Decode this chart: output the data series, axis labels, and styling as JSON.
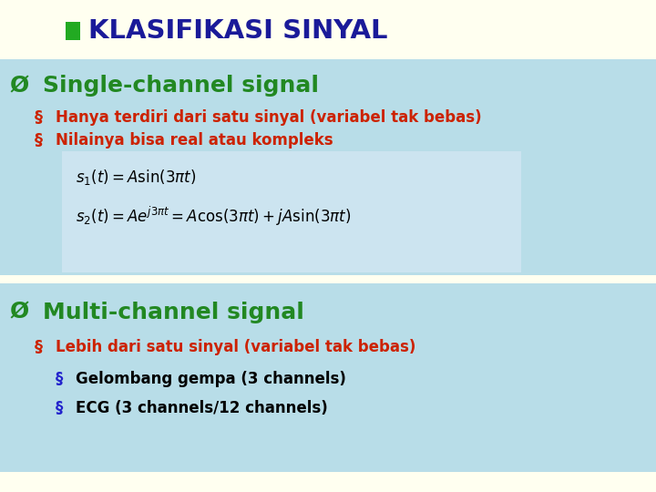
{
  "bg_color": "#fffff0",
  "title_text": "KLASIFIKASI SINYAL",
  "title_color": "#1a1a99",
  "title_bg": "#fffff0",
  "title_square_color": "#22aa22",
  "section1_bg": "#b8dde8",
  "section2_bg": "#b8dde8",
  "section1_header": "Single-channel signal",
  "section2_header": "Multi-channel signal",
  "header_color": "#228822",
  "bullet_red": "#cc2200",
  "bullet_blue": "#2222cc",
  "bullet1": "Hanya terdiri dari satu sinyal (variabel tak bebas)",
  "bullet2": "Nilainya bisa real atau kompleks",
  "formula_bg": "#cce4f0",
  "sub_bullet1": "Lebih dari satu sinyal (variabel tak bebas)",
  "sub_bullet2": "Gelombang gempa (3 channels)",
  "sub_bullet3": "ECG (3 channels/12 channels)"
}
